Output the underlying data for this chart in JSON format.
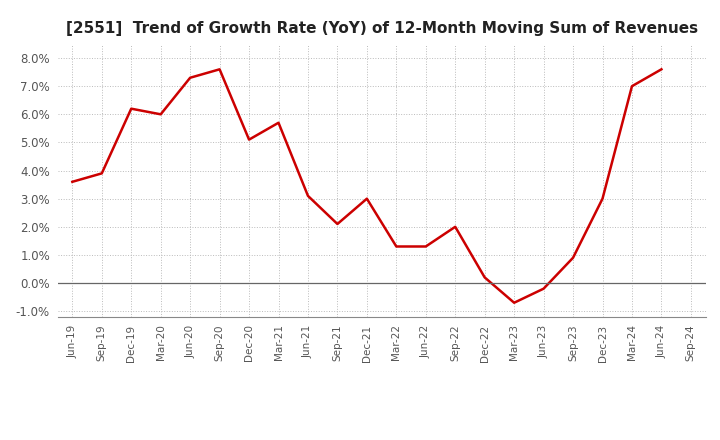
{
  "title": "[2551]  Trend of Growth Rate (YoY) of 12-Month Moving Sum of Revenues",
  "title_fontsize": 11,
  "line_color": "#cc0000",
  "line_width": 1.8,
  "background_color": "#ffffff",
  "grid_color": "#bbbbbb",
  "ylim": [
    -0.012,
    0.085
  ],
  "yticks": [
    -0.01,
    0.0,
    0.01,
    0.02,
    0.03,
    0.04,
    0.05,
    0.06,
    0.07,
    0.08
  ],
  "x_labels": [
    "Jun-19",
    "Sep-19",
    "Dec-19",
    "Mar-20",
    "Jun-20",
    "Sep-20",
    "Dec-20",
    "Mar-21",
    "Jun-21",
    "Sep-21",
    "Dec-21",
    "Mar-22",
    "Jun-22",
    "Sep-22",
    "Dec-22",
    "Mar-23",
    "Jun-23",
    "Sep-23",
    "Dec-23",
    "Mar-24",
    "Jun-24",
    "Sep-24"
  ],
  "y_values": [
    0.036,
    0.039,
    0.062,
    0.06,
    0.073,
    0.076,
    0.051,
    0.057,
    0.031,
    0.021,
    0.03,
    0.013,
    0.013,
    0.02,
    0.002,
    -0.007,
    -0.002,
    0.009,
    0.03,
    0.07,
    0.076,
    null
  ]
}
